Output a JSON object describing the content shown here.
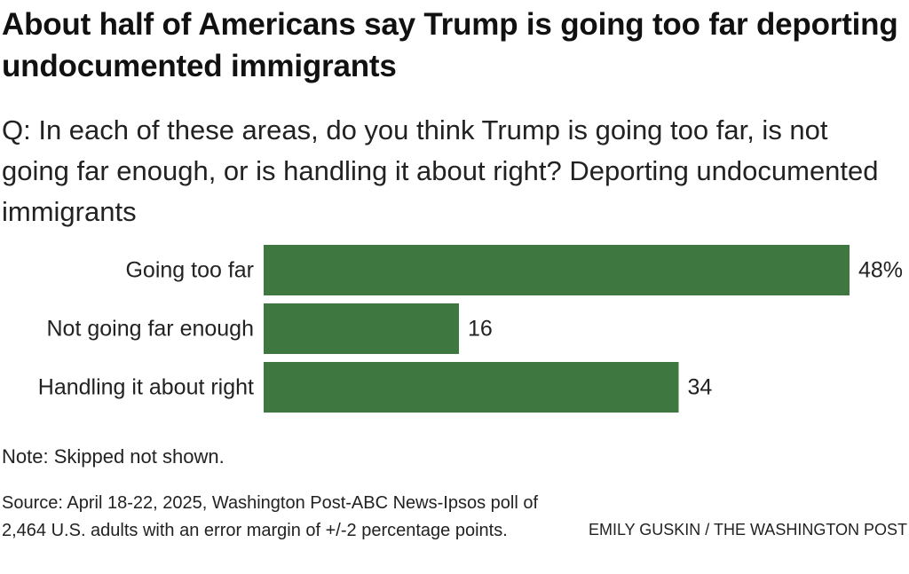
{
  "header": {
    "title": "About half of Americans say Trump is going too far deporting undocumented immigrants",
    "subtitle": "Q: In each of these areas, do you think Trump is going too far, is not going far enough, or is handling it about right? Deporting undocumented immigrants"
  },
  "chart_data": {
    "type": "bar",
    "orientation": "horizontal",
    "title": "About half of Americans say Trump is going too far deporting undocumented immigrants",
    "subtitle": "Q: In each of these areas, do you think Trump is going too far, is not going far enough, or is handling it about right? Deporting undocumented immigrants",
    "categories": [
      "Going too far",
      "Not going far enough",
      "Handling it about right"
    ],
    "values": [
      48,
      16,
      34
    ],
    "value_labels": [
      "48%",
      "16",
      "34"
    ],
    "xlim": [
      0,
      48
    ],
    "xlabel": "",
    "ylabel": "",
    "grid": false,
    "legend": "none",
    "bar_color": "#3e7840"
  },
  "footer": {
    "note": "Note: Skipped not shown.",
    "source": "Source: April 18-22, 2025, Washington Post-ABC News-Ipsos poll of 2,464 U.S. adults with an error margin of +/-2 percentage points.",
    "credit": "EMILY GUSKIN / THE WASHINGTON POST"
  }
}
